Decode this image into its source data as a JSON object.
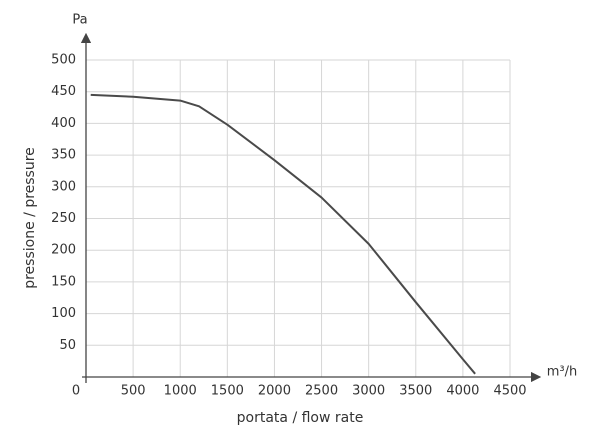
{
  "chart_data": {
    "type": "line",
    "y_axis_unit": "Pa",
    "x_axis_unit": "m³/h",
    "y_label": "pressione / pressure",
    "x_label": "portata / flow rate",
    "series": [
      {
        "color": "#4a4a4a",
        "x": [
          50,
          500,
          1000,
          1200,
          1500,
          2000,
          2500,
          3000,
          3500,
          4000,
          4130
        ],
        "values": [
          445,
          442,
          436,
          427,
          398,
          342,
          283,
          210,
          118,
          28,
          5
        ]
      }
    ],
    "xlim": [
      0,
      4500
    ],
    "ylim": [
      0,
      500
    ],
    "xticks": [
      0,
      500,
      1000,
      1500,
      2000,
      2500,
      3000,
      3500,
      4000,
      4500
    ],
    "yticks": [
      50,
      100,
      150,
      200,
      250,
      300,
      350,
      400,
      450,
      500
    ],
    "grid": true
  }
}
